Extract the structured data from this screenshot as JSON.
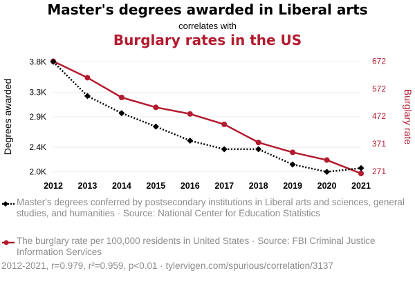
{
  "header": {
    "title": "Master's degrees awarded in Liberal arts",
    "connector": "correlates with",
    "subtitle": "Burglary rates in the US"
  },
  "colors": {
    "series1": "#000000",
    "series2": "#b31b2f",
    "muted": "#8c8c8c",
    "grid": "#ebebeb"
  },
  "legend": {
    "series1": "Master's degrees conferred by postsecondary institutions in Liberal arts and sciences, general studies, and humanities · Source: National Center for Education Statistics",
    "series2": "The burglary rate per 100,000 residents in United States · Source: FBI Criminal Justice Information Services"
  },
  "footer": "2012-2021, r=0.979, r²=0.959, p<0.01 · tylervigen.com/spurious/correlation/3137",
  "chart_data": {
    "type": "line",
    "x": [
      2012,
      2013,
      2014,
      2015,
      2016,
      2017,
      2018,
      2019,
      2020,
      2021
    ],
    "x_ticks": [
      "2012",
      "2013",
      "2014",
      "2015",
      "2016",
      "2017",
      "2018",
      "2019",
      "2020",
      "2021"
    ],
    "ylabel_left": "Degrees awarded",
    "ylabel_right": "Burglary rate",
    "y_left": {
      "lim": [
        1950,
        3850
      ],
      "ticks": [
        2000,
        2400,
        2900,
        3300,
        3800
      ],
      "tick_labels": [
        "2.0K",
        "2.4K",
        "2.9K",
        "3.3K",
        "3.8K"
      ]
    },
    "y_right": {
      "lim": [
        258,
        681
      ],
      "ticks": [
        271,
        371,
        472,
        572,
        672
      ],
      "tick_labels": [
        "271",
        "371",
        "472",
        "572",
        "672"
      ]
    },
    "series": [
      {
        "axis": "left",
        "style": "dotted",
        "marker": "diamond",
        "values": [
          3800,
          3240,
          2960,
          2740,
          2510,
          2370,
          2370,
          2120,
          2000,
          2060
        ]
      },
      {
        "axis": "right",
        "style": "solid",
        "marker": "circle",
        "values": [
          672,
          612,
          540,
          504,
          480,
          442,
          376,
          340,
          312,
          263
        ]
      }
    ],
    "grid": true,
    "legend_position": "bottom"
  }
}
